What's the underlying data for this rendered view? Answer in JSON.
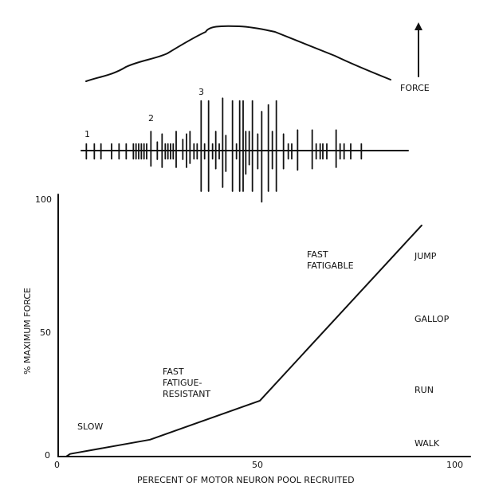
{
  "top_panel": {
    "force_label": "FORCE",
    "unit_labels": [
      "1",
      "2",
      "3"
    ]
  },
  "chart_data": {
    "type": "line",
    "title": "",
    "xlabel": "PERECENT OF MOTOR NEURON POOL RECRUITED",
    "ylabel": "% MAXIMUM FORCE",
    "xlim": [
      0,
      100
    ],
    "ylim": [
      0,
      100
    ],
    "x_ticks": [
      "0",
      "50",
      "100"
    ],
    "y_ticks": [
      "0",
      "50",
      "100"
    ],
    "grid": false,
    "series": [
      {
        "name": "force",
        "x": [
          0,
          2,
          3,
          23,
          50.5,
          91
        ],
        "y": [
          0,
          0,
          1,
          6.5,
          21.5,
          89
        ]
      }
    ],
    "annotations": {
      "slow": "SLOW",
      "fast_fatigue_resistant": [
        "FAST",
        "FATIGUE-",
        "RESISTANT"
      ],
      "fast_fatigable": [
        "FAST",
        "FATIGABLE"
      ],
      "gaits": [
        "JUMP",
        "GALLOP",
        "RUN",
        "WALK"
      ]
    }
  }
}
